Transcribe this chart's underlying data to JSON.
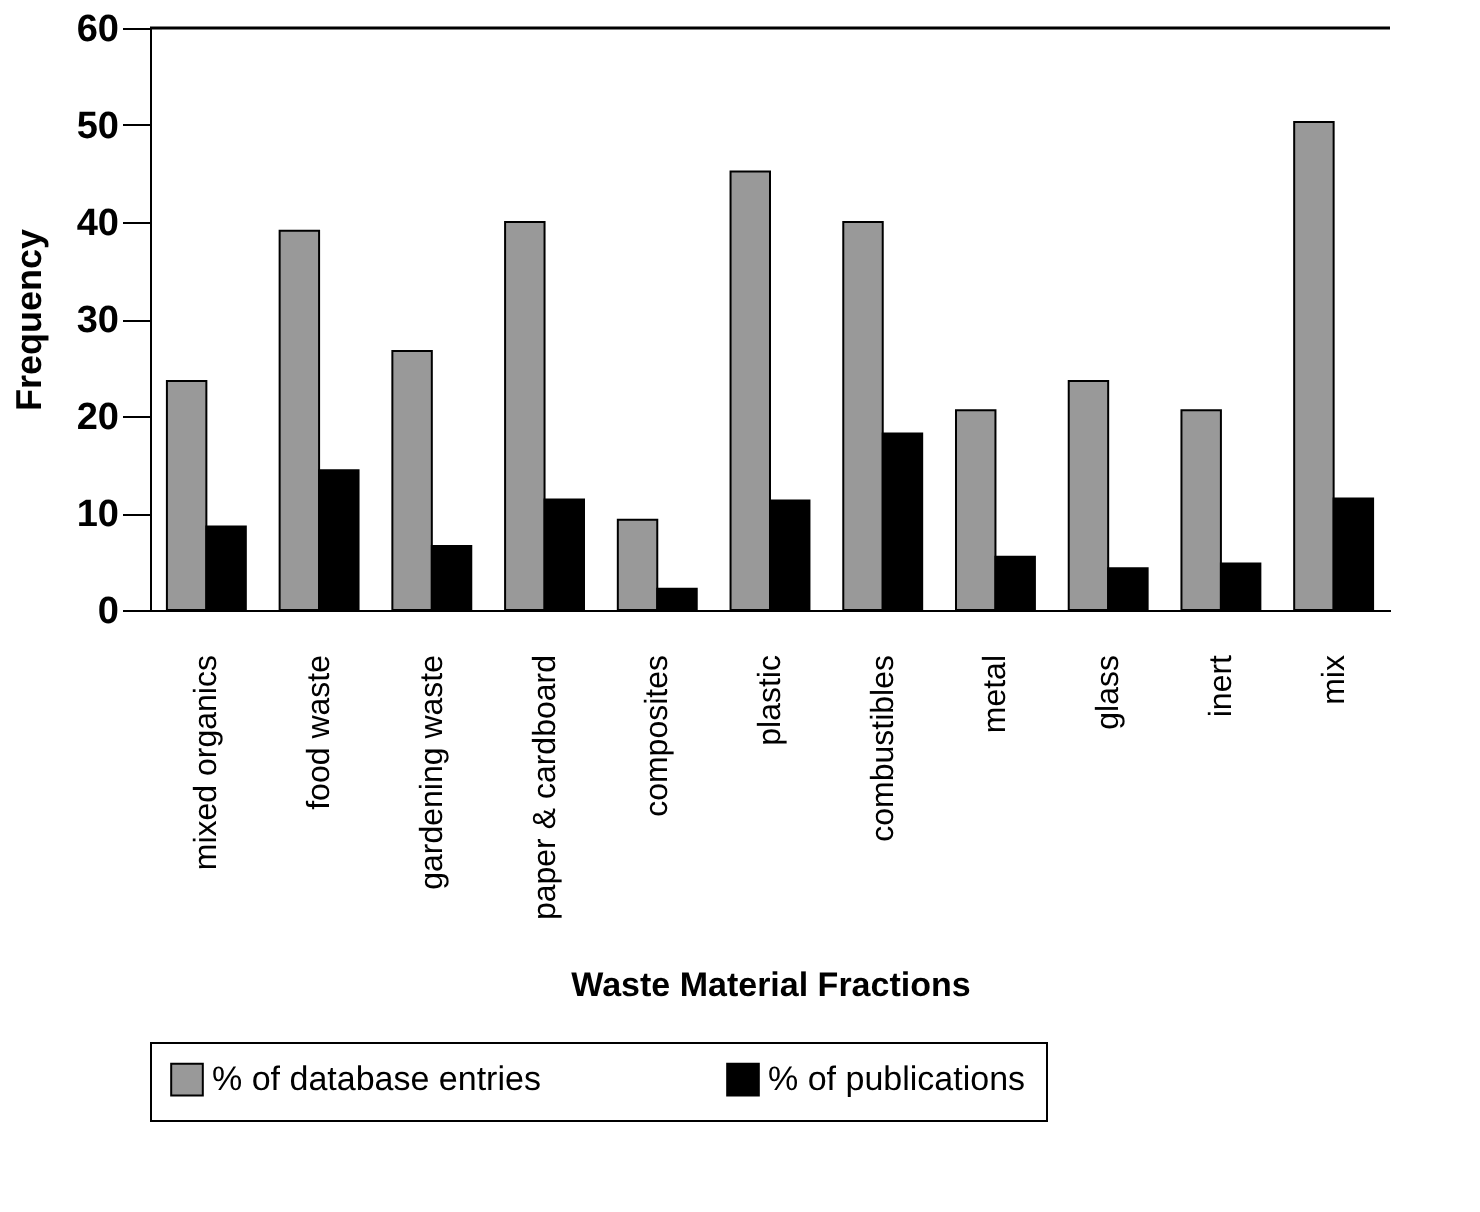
{
  "chart_data": {
    "type": "bar",
    "xlabel": "Waste Material Fractions",
    "ylabel": "Frequency",
    "categories": [
      "mixed organics",
      "food waste",
      "gardening waste",
      "paper & cardboard",
      "composites",
      "plastic",
      "combustibles",
      "metal",
      "glass",
      "inert",
      "mix"
    ],
    "series": [
      {
        "name": "% of database entries",
        "color": "#999999",
        "values": [
          23.6,
          39.1,
          26.7,
          40.0,
          9.3,
          45.2,
          40.0,
          20.6,
          23.6,
          20.6,
          50.3
        ]
      },
      {
        "name": "% of publications",
        "color": "#000000",
        "values": [
          8.6,
          14.4,
          6.6,
          11.4,
          2.2,
          11.3,
          18.2,
          5.5,
          4.3,
          4.8,
          11.5
        ]
      }
    ],
    "ylim": [
      0,
      60
    ],
    "yticks": [
      0,
      10,
      20,
      30,
      40,
      50,
      60
    ],
    "grid": false,
    "legend": "bottom"
  }
}
